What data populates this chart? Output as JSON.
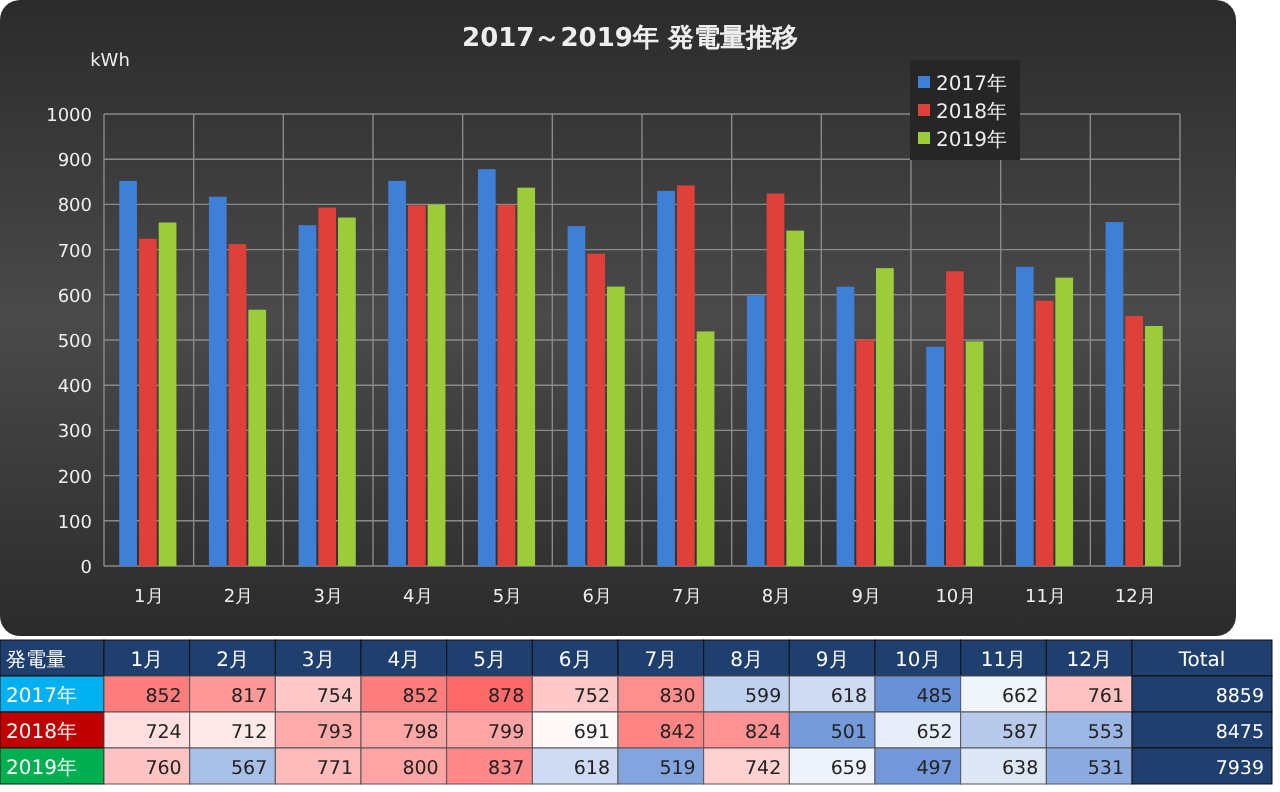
{
  "chart_data": {
    "type": "bar",
    "title": "2017～2019年 発電量推移",
    "ylabel": "kWh",
    "categories": [
      "1月",
      "2月",
      "3月",
      "4月",
      "5月",
      "6月",
      "7月",
      "8月",
      "9月",
      "10月",
      "11月",
      "12月"
    ],
    "series": [
      {
        "name": "2017年",
        "color": "#3f7fd6",
        "values": [
          852,
          817,
          754,
          852,
          878,
          752,
          830,
          599,
          618,
          485,
          662,
          761
        ]
      },
      {
        "name": "2018年",
        "color": "#e0403a",
        "values": [
          724,
          712,
          793,
          798,
          799,
          691,
          842,
          824,
          501,
          652,
          587,
          553
        ]
      },
      {
        "name": "2019年",
        "color": "#9ccc3a",
        "values": [
          760,
          567,
          771,
          800,
          837,
          618,
          519,
          742,
          659,
          497,
          638,
          531
        ]
      }
    ],
    "ylim": [
      0,
      1000
    ],
    "yticks": [
      0,
      100,
      200,
      300,
      400,
      500,
      600,
      700,
      800,
      900,
      1000
    ],
    "grid": true,
    "legend": "top right",
    "data_labels": true,
    "annotations": [
      "発電量",
      "Total",
      "8859",
      "8475",
      "7939"
    ]
  }
}
